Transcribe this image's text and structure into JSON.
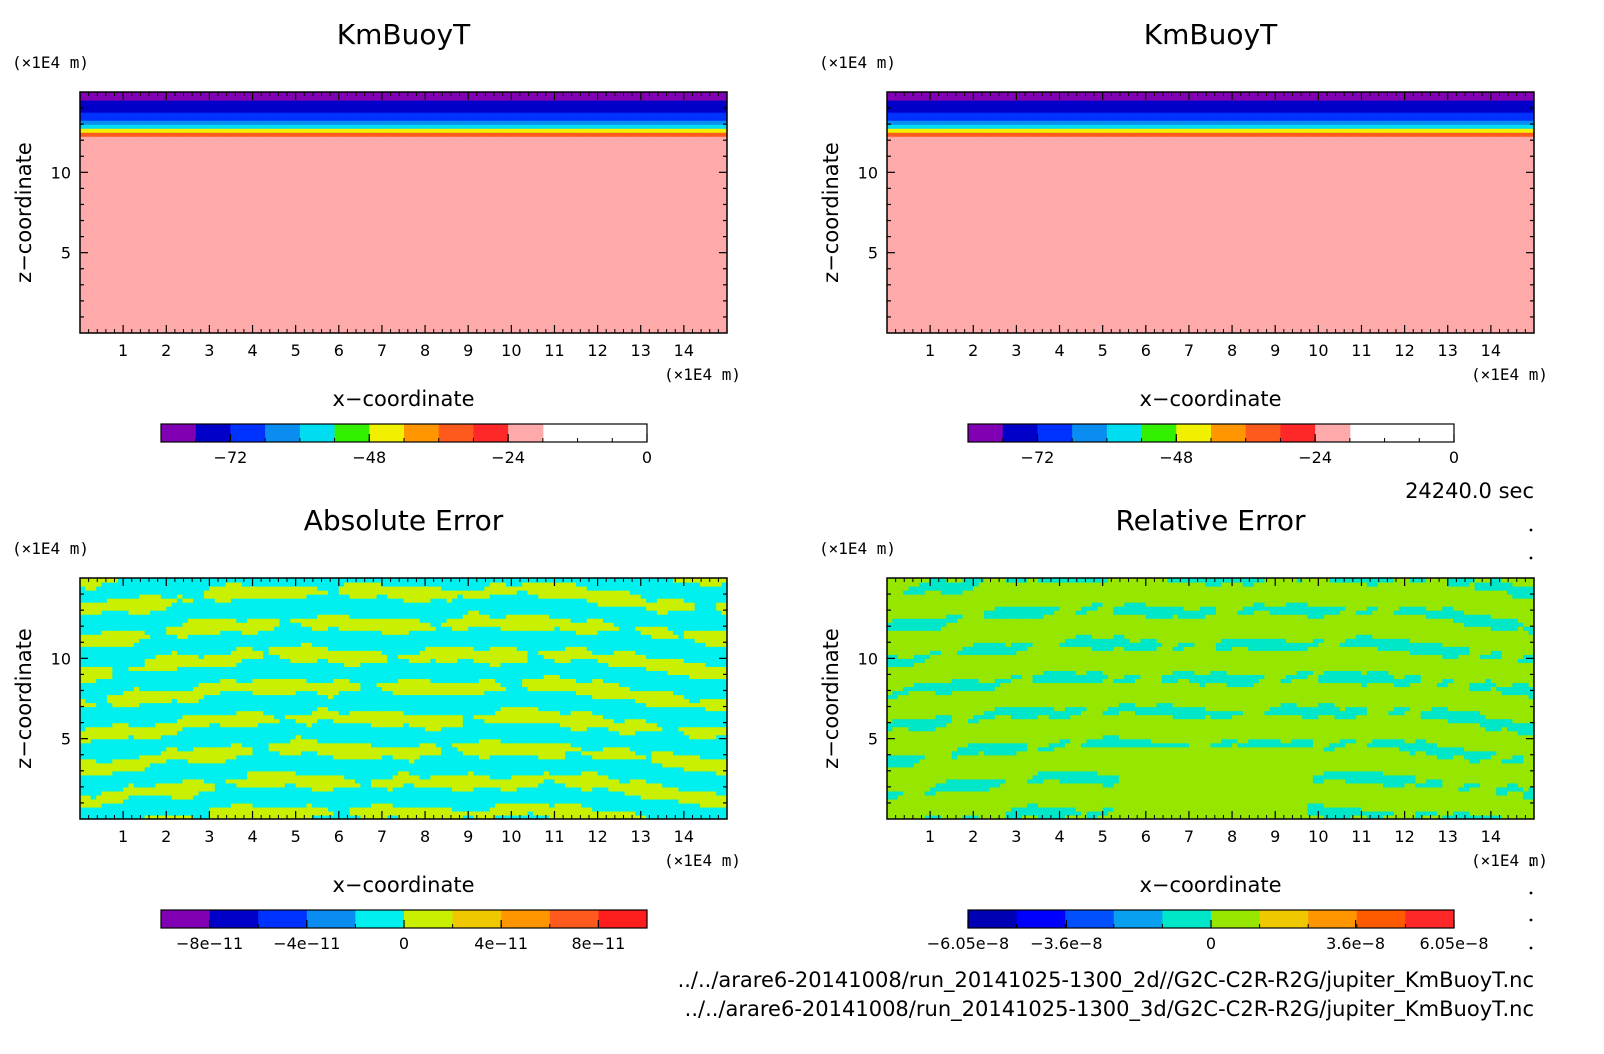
{
  "time_label": "24240.0 sec",
  "files": [
    "../../arare6-20141008/run_20141025-1300_2d//G2C-C2R-R2G/jupiter_KmBuoyT.nc",
    "../../arare6-20141008/run_20141025-1300_3d/G2C-C2R-R2G/jupiter_KmBuoyT.nc"
  ],
  "chart_data": [
    {
      "type": "heatmap",
      "title": "KmBuoyT",
      "xlabel": "x−coordinate",
      "ylabel": "z−coordinate",
      "x_unit": "(×1E4 m)",
      "z_unit": "(×1E4 m)",
      "xlim": [
        0,
        15
      ],
      "zlim": [
        0,
        15
      ],
      "x_ticks": [
        "1",
        "2",
        "3",
        "4",
        "5",
        "6",
        "7",
        "8",
        "9",
        "10",
        "11",
        "12",
        "13",
        "14"
      ],
      "z_ticks": [
        "5",
        "10"
      ],
      "field": "kmbuoyt",
      "colorbar": {
        "levels": [
          -84,
          -78,
          -72,
          -66,
          -60,
          -54,
          -48,
          -42,
          -36,
          -30,
          -24,
          -18,
          -12,
          -6,
          0
        ],
        "colors": [
          "#8200b4",
          "#0000c8",
          "#0032ff",
          "#0a8cf0",
          "#00dcf0",
          "#32f000",
          "#f0f000",
          "#ff9600",
          "#ff5a1e",
          "#ff2828",
          "#ffaaaa"
        ],
        "tick_values": [
          -72,
          -48,
          -24,
          0
        ],
        "tick_labels": [
          "−72",
          "−48",
          "−24",
          "0"
        ]
      }
    },
    {
      "type": "heatmap",
      "title": "KmBuoyT",
      "xlabel": "x−coordinate",
      "ylabel": "z−coordinate",
      "x_unit": "(×1E4 m)",
      "z_unit": "(×1E4 m)",
      "xlim": [
        0,
        15
      ],
      "zlim": [
        0,
        15
      ],
      "x_ticks": [
        "1",
        "2",
        "3",
        "4",
        "5",
        "6",
        "7",
        "8",
        "9",
        "10",
        "11",
        "12",
        "13",
        "14"
      ],
      "z_ticks": [
        "5",
        "10"
      ],
      "field": "kmbuoyt",
      "colorbar": {
        "levels": [
          -84,
          -78,
          -72,
          -66,
          -60,
          -54,
          -48,
          -42,
          -36,
          -30,
          -24,
          -18,
          -12,
          -6,
          0
        ],
        "colors": [
          "#8200b4",
          "#0000c8",
          "#0032ff",
          "#0a8cf0",
          "#00dcf0",
          "#32f000",
          "#f0f000",
          "#ff9600",
          "#ff5a1e",
          "#ff2828",
          "#ffaaaa"
        ],
        "tick_values": [
          -72,
          -48,
          -24,
          0
        ],
        "tick_labels": [
          "−72",
          "−48",
          "−24",
          "0"
        ]
      }
    },
    {
      "type": "heatmap",
      "title": "Absolute Error",
      "xlabel": "x−coordinate",
      "ylabel": "z−coordinate",
      "x_unit": "(×1E4 m)",
      "z_unit": "(×1E4 m)",
      "xlim": [
        0,
        15
      ],
      "zlim": [
        0,
        15
      ],
      "x_ticks": [
        "1",
        "2",
        "3",
        "4",
        "5",
        "6",
        "7",
        "8",
        "9",
        "10",
        "11",
        "12",
        "13",
        "14"
      ],
      "z_ticks": [
        "5",
        "10"
      ],
      "field": "abserr",
      "colorbar": {
        "levels": [
          -1e-10,
          -8e-11,
          -6e-11,
          -4e-11,
          -2e-11,
          0,
          2e-11,
          4e-11,
          6e-11,
          8e-11,
          1e-10
        ],
        "colors": [
          "#8200b4",
          "#0000c8",
          "#0032ff",
          "#0a8cf0",
          "#00f0f0",
          "#c8f000",
          "#f0c800",
          "#ff9600",
          "#ff5a1e",
          "#ff1e1e",
          "#ffaaaa"
        ],
        "tick_values": [
          -8e-11,
          -4e-11,
          0,
          4e-11,
          8e-11
        ],
        "tick_labels": [
          "−8e−11",
          "−4e−11",
          "0",
          "4e−11",
          "8e−11"
        ]
      }
    },
    {
      "type": "heatmap",
      "title": "Relative Error",
      "xlabel": "x−coordinate",
      "ylabel": "z−coordinate",
      "x_unit": "(×1E4 m)",
      "z_unit": "(×1E4 m)",
      "xlim": [
        0,
        15
      ],
      "zlim": [
        0,
        15
      ],
      "x_ticks": [
        "1",
        "2",
        "3",
        "4",
        "5",
        "6",
        "7",
        "8",
        "9",
        "10",
        "11",
        "12",
        "13",
        "14"
      ],
      "z_ticks": [
        "5",
        "10"
      ],
      "field": "relerr",
      "colorbar": {
        "levels": [
          -6.05e-08,
          -4.84e-08,
          -3.63e-08,
          -2.42e-08,
          -1.21e-08,
          0,
          1.21e-08,
          2.42e-08,
          3.63e-08,
          4.84e-08,
          6.05e-08
        ],
        "colors": [
          "#0000b4",
          "#0000ff",
          "#0050ff",
          "#0aa0f0",
          "#00e6c8",
          "#96e600",
          "#f0c800",
          "#ff9600",
          "#ff5a00",
          "#ff2828"
        ],
        "tick_values": [
          -6.05e-08,
          -3.6e-08,
          0,
          3.6e-08,
          6.05e-08
        ],
        "tick_labels": [
          "−6.05e−8",
          "−3.6e−8",
          "0",
          "3.6e−8",
          "6.05e−8"
        ]
      }
    }
  ]
}
